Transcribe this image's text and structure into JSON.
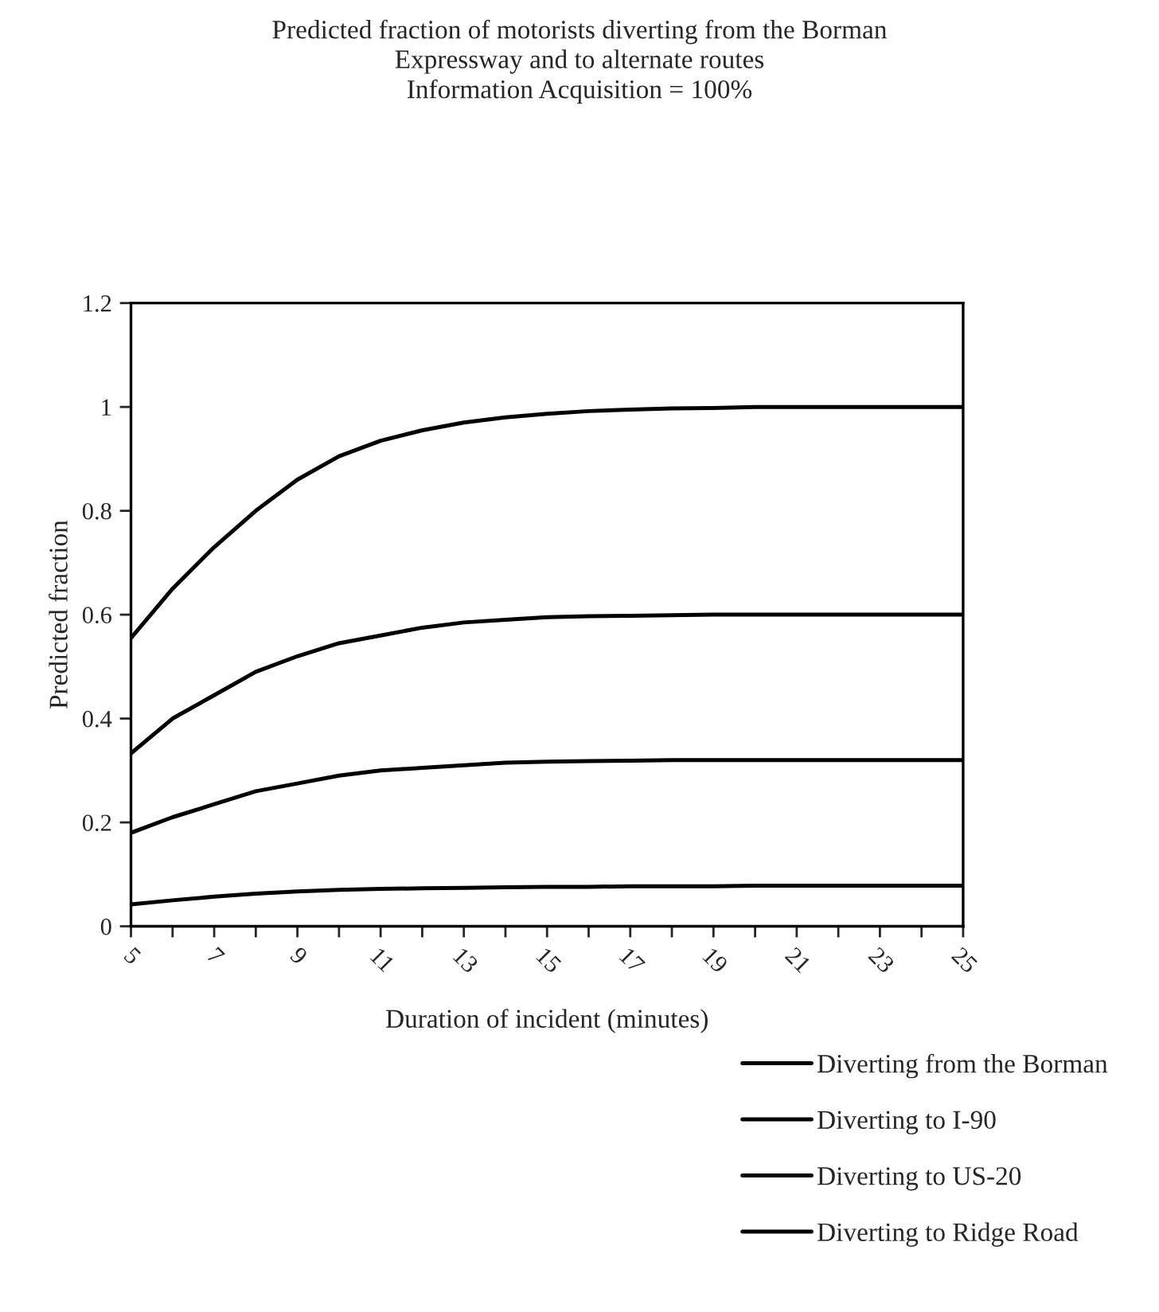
{
  "chart_data": {
    "type": "line",
    "title": "Predicted fraction of motorists diverting from the Borman\nExpressway and to alternate routes\nInformation Acquisition = 100%",
    "xlabel": "Duration of incident (minutes)",
    "ylabel": "Predicted fraction",
    "x": [
      5,
      6,
      7,
      8,
      9,
      10,
      11,
      12,
      13,
      14,
      15,
      16,
      17,
      18,
      19,
      20,
      21,
      22,
      23,
      24,
      25
    ],
    "series": [
      {
        "name": "Diverting from the Borman",
        "color": "#000000",
        "values": [
          0.555,
          0.65,
          0.73,
          0.8,
          0.86,
          0.905,
          0.935,
          0.955,
          0.97,
          0.98,
          0.987,
          0.992,
          0.995,
          0.997,
          0.998,
          1.0,
          1.0,
          1.0,
          1.0,
          1.0,
          1.0
        ]
      },
      {
        "name": "Diverting to I-90",
        "color": "#000000",
        "values": [
          0.333,
          0.4,
          0.445,
          0.49,
          0.52,
          0.545,
          0.56,
          0.575,
          0.585,
          0.59,
          0.595,
          0.597,
          0.598,
          0.599,
          0.6,
          0.6,
          0.6,
          0.6,
          0.6,
          0.6,
          0.6
        ]
      },
      {
        "name": "Diverting to US-20",
        "color": "#000000",
        "values": [
          0.18,
          0.21,
          0.235,
          0.26,
          0.275,
          0.29,
          0.3,
          0.305,
          0.31,
          0.315,
          0.317,
          0.318,
          0.319,
          0.32,
          0.32,
          0.32,
          0.32,
          0.32,
          0.32,
          0.32,
          0.32
        ]
      },
      {
        "name": "Diverting to Ridge Road",
        "color": "#000000",
        "values": [
          0.042,
          0.05,
          0.057,
          0.063,
          0.067,
          0.07,
          0.072,
          0.073,
          0.074,
          0.075,
          0.076,
          0.076,
          0.077,
          0.077,
          0.077,
          0.078,
          0.078,
          0.078,
          0.078,
          0.078,
          0.078
        ]
      }
    ],
    "xlim": [
      5,
      25
    ],
    "xticks": [
      5,
      {
        "value": 6,
        "label": null
      },
      7,
      {
        "value": 8,
        "label": null
      },
      9,
      {
        "value": 10,
        "label": null
      },
      11,
      {
        "value": 12,
        "label": null
      },
      13,
      {
        "value": 14,
        "label": null
      },
      15,
      {
        "value": 16,
        "label": null
      },
      17,
      {
        "value": 18,
        "label": null
      },
      19,
      {
        "value": 20,
        "label": null
      },
      21,
      {
        "value": 22,
        "label": null
      },
      23,
      {
        "value": 24,
        "label": null
      },
      25
    ],
    "ylim": [
      0,
      1.2
    ],
    "yticks": [
      0,
      0.2,
      0.4,
      0.6,
      0.8,
      1,
      1.2
    ],
    "grid": false,
    "legend": "bottom right",
    "marker": "none",
    "line_style": "solid"
  }
}
